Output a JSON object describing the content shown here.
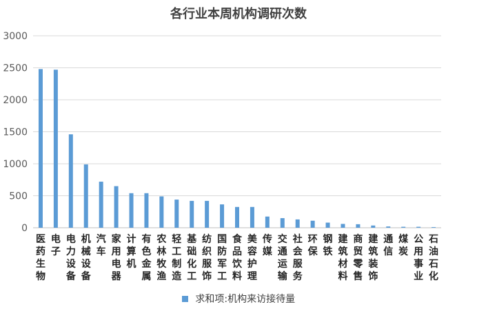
{
  "chart_data": {
    "type": "bar",
    "title": "各行业本周机构调研次数",
    "categories": [
      "医药生物",
      "电子",
      "电力设备",
      "机械设备",
      "汽车",
      "家用电器",
      "计算机",
      "有色金属",
      "农林牧渔",
      "轻工制造",
      "基础化工",
      "纺织服饰",
      "国防军工",
      "食品饮料",
      "美容护理",
      "传媒",
      "交通运输",
      "社会服务",
      "环保",
      "钢铁",
      "建筑材料",
      "商贸零售",
      "建筑装饰",
      "通信",
      "煤炭",
      "公用事业",
      "石油石化"
    ],
    "series": [
      {
        "name": "求和项:机构来访接待量",
        "values": [
          2480,
          2470,
          1460,
          990,
          720,
          650,
          540,
          540,
          490,
          440,
          420,
          420,
          365,
          325,
          325,
          175,
          150,
          130,
          110,
          80,
          60,
          55,
          35,
          20,
          15,
          15,
          10
        ]
      }
    ],
    "ylim": [
      0,
      3000
    ],
    "yticks": [
      0,
      500,
      1000,
      1500,
      2000,
      2500,
      3000
    ],
    "grid": true,
    "legend_position": "bottom",
    "colors": {
      "bar": "#5B9BD5",
      "grid": "#D9D9D9",
      "axis": "#BFBFBF"
    }
  }
}
